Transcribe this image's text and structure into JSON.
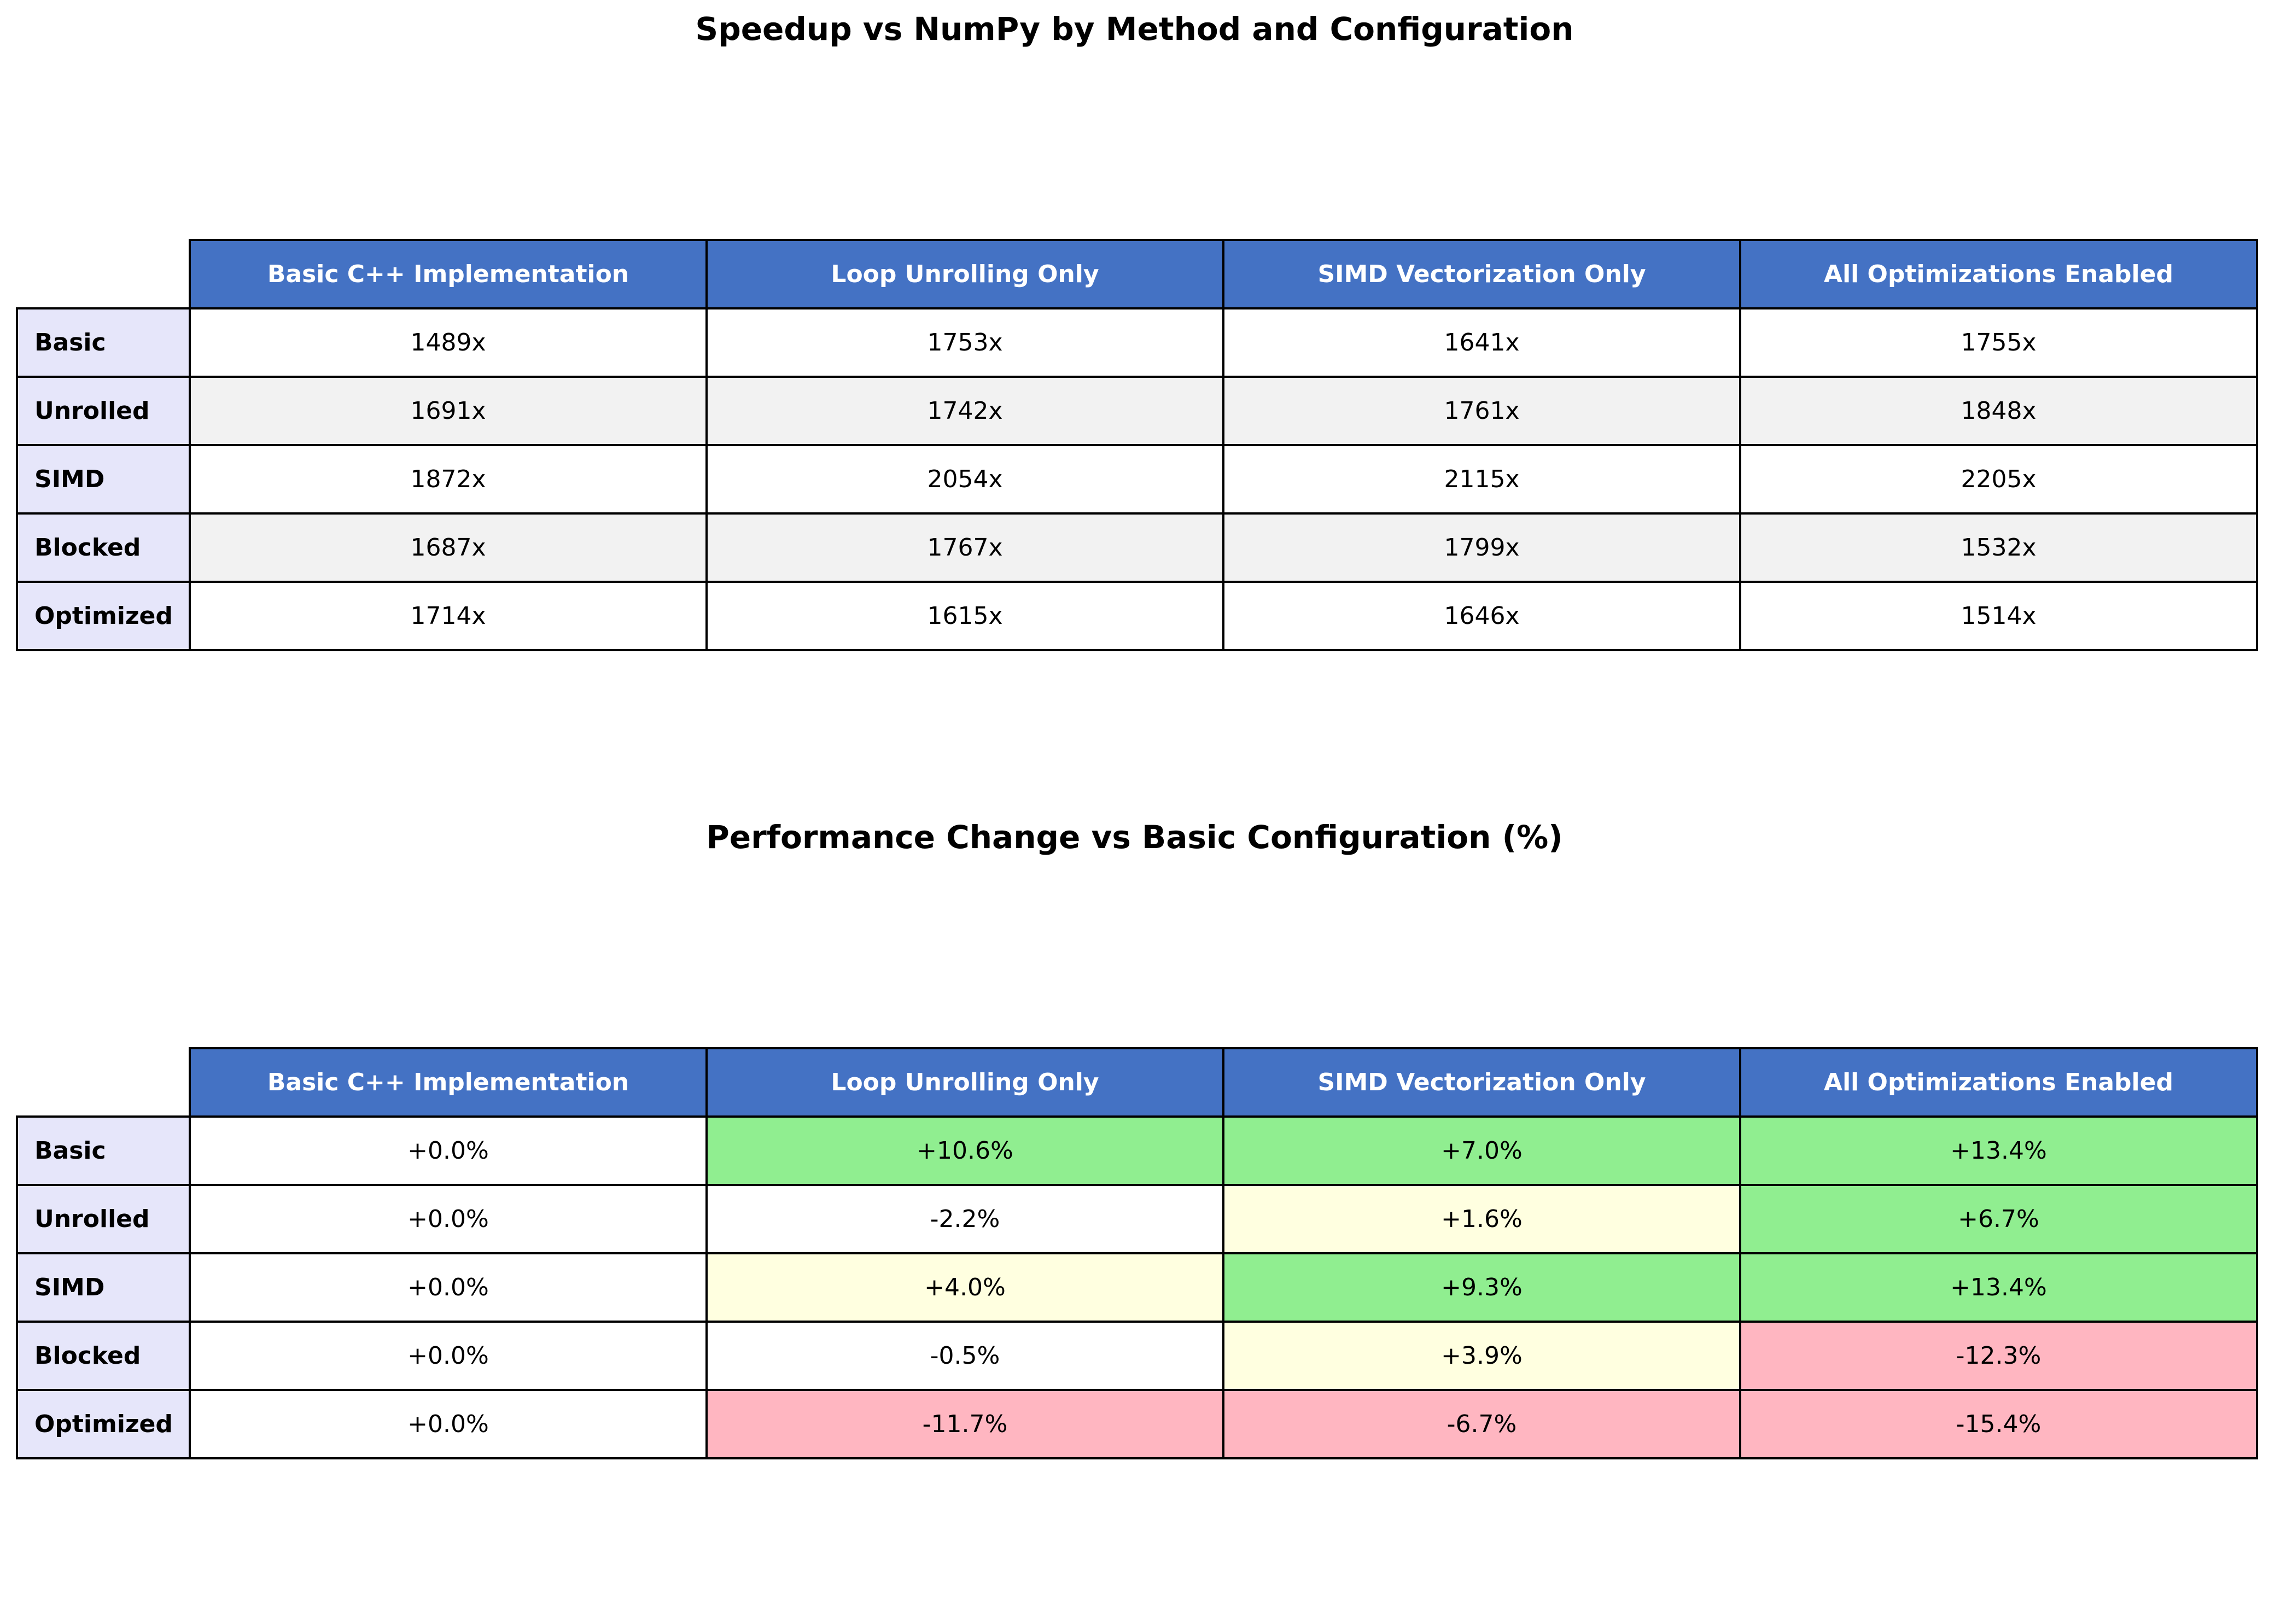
{
  "colors": {
    "header_bg": "#4472c4",
    "header_text": "#ffffff",
    "row_label_bg": "#e6e6fa",
    "stripe_bg": "#f2f2f2",
    "plain_bg": "#ffffff",
    "positive_bg": "#90ee90",
    "neutral_bg": "#ffffe0",
    "negative_bg": "#ffb6c1"
  },
  "chart_data": [
    {
      "type": "table",
      "title": "Speedup vs NumPy by Method and Configuration",
      "columns": [
        "Basic C++ Implementation",
        "Loop Unrolling Only",
        "SIMD Vectorization Only",
        "All Optimizations Enabled"
      ],
      "rows": [
        {
          "label": "Basic",
          "values": [
            1489,
            1753,
            1641,
            1755
          ],
          "display": [
            "1489x",
            "1753x",
            "1641x",
            "1755x"
          ],
          "bg": [
            "#ffffff",
            "#ffffff",
            "#ffffff",
            "#ffffff"
          ]
        },
        {
          "label": "Unrolled",
          "values": [
            1691,
            1742,
            1761,
            1848
          ],
          "display": [
            "1691x",
            "1742x",
            "1761x",
            "1848x"
          ],
          "bg": [
            "#f2f2f2",
            "#f2f2f2",
            "#f2f2f2",
            "#f2f2f2"
          ]
        },
        {
          "label": "SIMD",
          "values": [
            1872,
            2054,
            2115,
            2205
          ],
          "display": [
            "1872x",
            "2054x",
            "2115x",
            "2205x"
          ],
          "bg": [
            "#ffffff",
            "#ffffff",
            "#ffffff",
            "#ffffff"
          ]
        },
        {
          "label": "Blocked",
          "values": [
            1687,
            1767,
            1799,
            1532
          ],
          "display": [
            "1687x",
            "1767x",
            "1799x",
            "1532x"
          ],
          "bg": [
            "#f2f2f2",
            "#f2f2f2",
            "#f2f2f2",
            "#f2f2f2"
          ]
        },
        {
          "label": "Optimized",
          "values": [
            1714,
            1615,
            1646,
            1514
          ],
          "display": [
            "1714x",
            "1615x",
            "1646x",
            "1514x"
          ],
          "bg": [
            "#ffffff",
            "#ffffff",
            "#ffffff",
            "#ffffff"
          ]
        }
      ]
    },
    {
      "type": "table",
      "title": "Performance Change vs Basic Configuration (%)",
      "columns": [
        "Basic C++ Implementation",
        "Loop Unrolling Only",
        "SIMD Vectorization Only",
        "All Optimizations Enabled"
      ],
      "rows": [
        {
          "label": "Basic",
          "values": [
            0.0,
            10.6,
            7.0,
            13.4
          ],
          "display": [
            "+0.0%",
            "+10.6%",
            "+7.0%",
            "+13.4%"
          ],
          "bg": [
            "#ffffff",
            "#90ee90",
            "#90ee90",
            "#90ee90"
          ]
        },
        {
          "label": "Unrolled",
          "values": [
            0.0,
            -2.2,
            1.6,
            6.7
          ],
          "display": [
            "+0.0%",
            "-2.2%",
            "+1.6%",
            "+6.7%"
          ],
          "bg": [
            "#ffffff",
            "#ffffff",
            "#ffffe0",
            "#90ee90"
          ]
        },
        {
          "label": "SIMD",
          "values": [
            0.0,
            4.0,
            9.3,
            13.4
          ],
          "display": [
            "+0.0%",
            "+4.0%",
            "+9.3%",
            "+13.4%"
          ],
          "bg": [
            "#ffffff",
            "#ffffe0",
            "#90ee90",
            "#90ee90"
          ]
        },
        {
          "label": "Blocked",
          "values": [
            0.0,
            -0.5,
            3.9,
            -12.3
          ],
          "display": [
            "+0.0%",
            "-0.5%",
            "+3.9%",
            "-12.3%"
          ],
          "bg": [
            "#ffffff",
            "#ffffff",
            "#ffffe0",
            "#ffb6c1"
          ]
        },
        {
          "label": "Optimized",
          "values": [
            0.0,
            -11.7,
            -6.7,
            -15.4
          ],
          "display": [
            "+0.0%",
            "-11.7%",
            "-6.7%",
            "-15.4%"
          ],
          "bg": [
            "#ffffff",
            "#ffb6c1",
            "#ffb6c1",
            "#ffb6c1"
          ]
        }
      ]
    }
  ]
}
